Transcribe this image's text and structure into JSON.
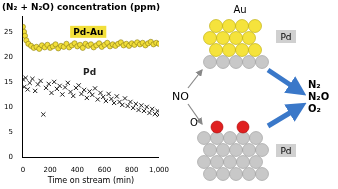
{
  "chart_data": {
    "type": "scatter",
    "title": "(N₂ + N₂O) concentration (ppm)",
    "x_label": "Time on stream (min)",
    "xlim": [
      0,
      1000
    ],
    "xticks": [
      0,
      200,
      400,
      600,
      800,
      1000
    ],
    "ylim": [
      0,
      28
    ],
    "yticks": [
      0,
      5,
      10,
      15,
      20,
      25
    ],
    "grid": false,
    "series": [
      {
        "name": "Pd-Au",
        "color": "#f2df3a",
        "marker": "circle",
        "x": [
          0,
          8,
          15,
          25,
          40,
          60,
          80,
          100,
          120,
          140,
          160,
          180,
          200,
          220,
          240,
          260,
          280,
          300,
          320,
          340,
          360,
          380,
          400,
          420,
          440,
          460,
          480,
          500,
          520,
          540,
          560,
          580,
          600,
          620,
          640,
          660,
          680,
          700,
          720,
          740,
          760,
          780,
          800,
          820,
          840,
          860,
          880,
          900,
          920,
          940,
          960,
          980,
          1000
        ],
        "values": [
          26.0,
          25.0,
          24.2,
          23.3,
          22.6,
          22.2,
          21.8,
          22.0,
          21.6,
          22.3,
          21.9,
          22.4,
          21.8,
          22.1,
          22.5,
          21.7,
          22.2,
          22.0,
          22.6,
          21.9,
          22.3,
          22.7,
          22.1,
          22.4,
          21.8,
          22.6,
          22.2,
          22.5,
          21.9,
          22.3,
          22.7,
          22.0,
          22.4,
          22.8,
          22.1,
          22.5,
          22.2,
          22.6,
          22.9,
          22.3,
          22.6,
          22.2,
          22.7,
          22.4,
          22.9,
          22.5,
          22.8,
          22.3,
          22.7,
          23.0,
          22.5,
          22.8,
          22.6
        ]
      },
      {
        "name": "Pd",
        "color": "#222222",
        "marker": "x",
        "x": [
          0,
          10,
          20,
          35,
          50,
          70,
          90,
          110,
          130,
          150,
          170,
          190,
          210,
          230,
          250,
          270,
          290,
          310,
          330,
          350,
          370,
          390,
          410,
          430,
          450,
          470,
          490,
          510,
          530,
          550,
          570,
          590,
          610,
          630,
          650,
          670,
          690,
          710,
          730,
          750,
          770,
          790,
          810,
          830,
          850,
          870,
          890,
          910,
          930,
          950,
          970,
          990,
          1000
        ],
        "values": [
          15.5,
          14.0,
          15.8,
          13.5,
          14.8,
          15.6,
          13.2,
          14.5,
          15.2,
          8.5,
          13.8,
          14.6,
          12.8,
          15.0,
          13.6,
          14.2,
          12.5,
          13.9,
          14.8,
          13.0,
          12.2,
          13.8,
          14.3,
          12.6,
          13.4,
          11.8,
          13.1,
          12.4,
          13.7,
          11.5,
          12.8,
          12.0,
          11.2,
          12.6,
          11.6,
          10.8,
          12.1,
          11.0,
          10.4,
          11.7,
          10.2,
          11.0,
          9.8,
          10.6,
          9.4,
          10.3,
          9.2,
          10.0,
          8.8,
          9.6,
          8.6,
          9.2,
          8.4
        ]
      }
    ]
  },
  "diagram": {
    "top_metal": "Au",
    "support": "Pd",
    "reactant": "NO",
    "adsorbate": "O",
    "products": [
      "N₂",
      "N₂O",
      "O₂"
    ]
  }
}
